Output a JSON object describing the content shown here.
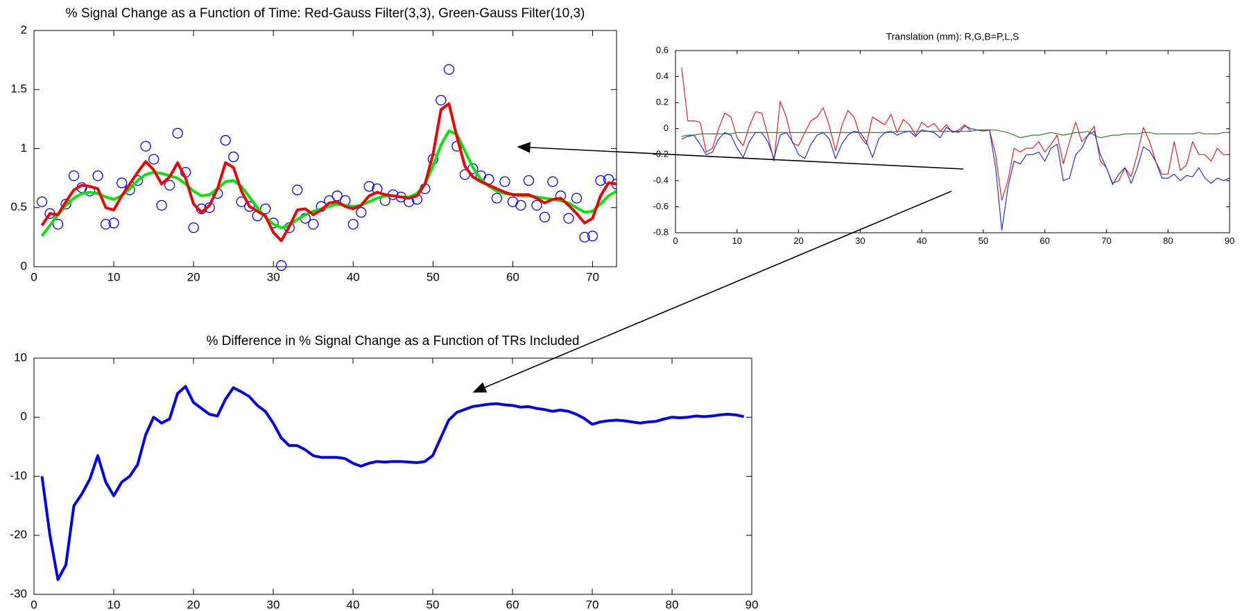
{
  "chart_data": [
    {
      "type": "line",
      "title": "% Signal Change as a Function of Time: Red-Gauss Filter(3,3), Green-Gauss Filter(10,3)",
      "x": [
        1,
        2,
        3,
        4,
        5,
        6,
        7,
        8,
        9,
        10,
        11,
        12,
        13,
        14,
        15,
        16,
        17,
        18,
        19,
        20,
        21,
        22,
        23,
        24,
        25,
        26,
        27,
        28,
        29,
        30,
        31,
        32,
        33,
        34,
        35,
        36,
        37,
        38,
        39,
        40,
        41,
        42,
        43,
        44,
        45,
        46,
        47,
        48,
        49,
        50,
        51,
        52,
        53,
        54,
        55,
        56,
        57,
        58,
        59,
        60,
        61,
        62,
        63,
        64,
        65,
        66,
        67,
        68,
        69,
        70,
        71,
        72,
        73
      ],
      "xlim": [
        0,
        73
      ],
      "xticks": [
        0,
        10,
        20,
        30,
        40,
        50,
        60,
        70
      ],
      "ylim": [
        0,
        2
      ],
      "yticks": [
        0,
        0.5,
        1,
        1.5,
        2
      ],
      "series": [
        {
          "color": "#0000ff",
          "mode": "markers",
          "values": [
            0.55,
            0.45,
            0.36,
            0.53,
            0.77,
            0.67,
            0.64,
            0.77,
            0.36,
            0.37,
            0.71,
            0.65,
            0.73,
            1.02,
            0.91,
            0.52,
            0.69,
            1.13,
            0.8,
            0.33,
            0.49,
            0.5,
            0.62,
            1.07,
            0.93,
            0.55,
            0.51,
            0.43,
            0.49,
            0.37,
            0.01,
            0.33,
            0.65,
            0.41,
            0.36,
            0.51,
            0.56,
            0.6,
            0.56,
            0.36,
            0.46,
            0.68,
            0.66,
            0.56,
            0.61,
            0.59,
            0.55,
            0.57,
            0.66,
            0.91,
            1.41,
            1.67,
            1.02,
            0.78,
            0.83,
            0.77,
            0.74,
            0.58,
            0.72,
            0.55,
            0.52,
            0.73,
            0.52,
            0.42,
            0.72,
            0.6,
            0.41,
            0.58,
            0.25,
            0.26,
            0.73,
            0.74,
            0.7
          ]
        },
        {
          "color": "#00e600",
          "mode": "lines",
          "values": [
            0.26,
            0.35,
            0.44,
            0.52,
            0.58,
            0.62,
            0.63,
            0.62,
            0.59,
            0.57,
            0.6,
            0.66,
            0.73,
            0.78,
            0.8,
            0.79,
            0.77,
            0.75,
            0.7,
            0.64,
            0.6,
            0.61,
            0.66,
            0.72,
            0.73,
            0.68,
            0.59,
            0.5,
            0.42,
            0.36,
            0.33,
            0.35,
            0.4,
            0.44,
            0.47,
            0.49,
            0.51,
            0.53,
            0.52,
            0.51,
            0.52,
            0.55,
            0.58,
            0.6,
            0.6,
            0.59,
            0.59,
            0.62,
            0.7,
            0.85,
            1.03,
            1.15,
            1.12,
            0.98,
            0.84,
            0.74,
            0.68,
            0.64,
            0.62,
            0.61,
            0.6,
            0.6,
            0.59,
            0.58,
            0.57,
            0.56,
            0.54,
            0.5,
            0.46,
            0.47,
            0.53,
            0.6,
            0.64
          ]
        },
        {
          "color": "#ee0000",
          "mode": "lines",
          "values": [
            0.35,
            0.45,
            0.44,
            0.55,
            0.65,
            0.69,
            0.68,
            0.66,
            0.5,
            0.48,
            0.6,
            0.7,
            0.8,
            0.89,
            0.82,
            0.7,
            0.76,
            0.88,
            0.75,
            0.53,
            0.46,
            0.52,
            0.66,
            0.88,
            0.84,
            0.64,
            0.51,
            0.47,
            0.43,
            0.29,
            0.22,
            0.34,
            0.48,
            0.49,
            0.44,
            0.48,
            0.54,
            0.55,
            0.51,
            0.49,
            0.52,
            0.6,
            0.63,
            0.61,
            0.6,
            0.59,
            0.58,
            0.6,
            0.7,
            0.95,
            1.33,
            1.38,
            1.1,
            0.85,
            0.76,
            0.72,
            0.69,
            0.66,
            0.63,
            0.61,
            0.61,
            0.61,
            0.58,
            0.54,
            0.57,
            0.58,
            0.52,
            0.45,
            0.37,
            0.41,
            0.6,
            0.71,
            0.7
          ]
        }
      ]
    },
    {
      "type": "line",
      "title": "Translation (mm): R,G,B=P,L,S",
      "x": [
        1,
        2,
        3,
        4,
        5,
        6,
        7,
        8,
        9,
        10,
        11,
        12,
        13,
        14,
        15,
        16,
        17,
        18,
        19,
        20,
        21,
        22,
        23,
        24,
        25,
        26,
        27,
        28,
        29,
        30,
        31,
        32,
        33,
        34,
        35,
        36,
        37,
        38,
        39,
        40,
        41,
        42,
        43,
        44,
        45,
        46,
        47,
        48,
        49,
        50,
        51,
        52,
        53,
        54,
        55,
        56,
        57,
        58,
        59,
        60,
        61,
        62,
        63,
        64,
        65,
        66,
        67,
        68,
        69,
        70,
        71,
        72,
        73,
        74,
        75,
        76,
        77,
        78,
        79,
        80,
        81,
        82,
        83,
        84,
        85,
        86,
        87,
        88,
        89,
        90
      ],
      "xlim": [
        0,
        90
      ],
      "xticks": [
        0,
        10,
        20,
        30,
        40,
        50,
        60,
        70,
        80,
        90
      ],
      "ylim": [
        -0.8,
        0.6
      ],
      "yticks": [
        -0.8,
        -0.6,
        -0.4,
        -0.2,
        0,
        0.2,
        0.4,
        0.6
      ],
      "series": [
        {
          "color": "#dd2222",
          "mode": "lines",
          "values": [
            0.47,
            0.06,
            0.06,
            0.05,
            -0.18,
            -0.15,
            0,
            0.12,
            0.09,
            -0.07,
            -0.13,
            0.02,
            0.13,
            0.12,
            -0.05,
            -0.25,
            0.21,
            0.09,
            -0.11,
            -0.13,
            -0.03,
            0.06,
            0.09,
            0.16,
            0.02,
            -0.17,
            0.02,
            0.14,
            0.09,
            -0.06,
            -0.12,
            0.09,
            0.06,
            0.03,
            0.11,
            -0.03,
            0.07,
            0.03,
            -0.05,
            0.05,
            0.01,
            0.04,
            -0.02,
            0.03,
            -0.03,
            -0.01,
            0.03,
            -0.02,
            -0.01,
            -0.02,
            -0.01,
            -0.2,
            -0.55,
            -0.4,
            -0.15,
            -0.18,
            -0.15,
            -0.15,
            -0.1,
            -0.18,
            -0.12,
            -0.05,
            -0.27,
            -0.1,
            0.05,
            -0.1,
            -0.05,
            0.02,
            -0.25,
            -0.3,
            -0.42,
            -0.4,
            -0.3,
            -0.37,
            -0.2,
            0.01,
            -0.1,
            -0.25,
            -0.35,
            -0.35,
            -0.1,
            -0.32,
            -0.28,
            -0.1,
            -0.2,
            -0.2,
            -0.25,
            -0.15,
            -0.2,
            -0.2
          ]
        },
        {
          "color": "#2a8a2a",
          "mode": "lines",
          "values": [
            -0.06,
            -0.05,
            -0.05,
            -0.04,
            -0.04,
            -0.04,
            -0.04,
            -0.04,
            -0.04,
            -0.03,
            -0.03,
            -0.03,
            -0.03,
            -0.03,
            -0.03,
            -0.03,
            -0.03,
            -0.03,
            -0.03,
            -0.03,
            -0.03,
            -0.03,
            -0.03,
            -0.03,
            -0.03,
            -0.03,
            -0.03,
            -0.03,
            -0.03,
            -0.03,
            -0.03,
            -0.03,
            -0.03,
            -0.03,
            -0.03,
            -0.02,
            -0.02,
            -0.02,
            -0.02,
            -0.02,
            -0.02,
            -0.02,
            -0.02,
            -0.02,
            -0.02,
            -0.02,
            -0.02,
            -0.02,
            -0.01,
            -0.01,
            -0.01,
            -0.01,
            -0.02,
            -0.03,
            -0.05,
            -0.07,
            -0.06,
            -0.05,
            -0.05,
            -0.04,
            -0.03,
            -0.04,
            -0.05,
            -0.04,
            -0.03,
            -0.03,
            -0.02,
            -0.05,
            -0.07,
            -0.06,
            -0.05,
            -0.05,
            -0.04,
            -0.04,
            -0.04,
            -0.03,
            -0.03,
            -0.04,
            -0.04,
            -0.04,
            -0.04,
            -0.04,
            -0.04,
            -0.04,
            -0.03,
            -0.04,
            -0.04,
            -0.04,
            -0.03,
            -0.03
          ]
        },
        {
          "color": "#2233cc",
          "mode": "lines",
          "values": [
            -0.08,
            -0.06,
            -0.05,
            -0.12,
            -0.2,
            -0.18,
            -0.08,
            -0.03,
            -0.05,
            -0.15,
            -0.22,
            -0.1,
            -0.03,
            -0.03,
            -0.1,
            -0.23,
            -0.05,
            -0.03,
            -0.1,
            -0.2,
            -0.23,
            -0.12,
            -0.05,
            -0.03,
            -0.08,
            -0.23,
            -0.12,
            -0.05,
            -0.02,
            -0.03,
            -0.1,
            -0.22,
            -0.08,
            -0.03,
            -0.02,
            -0.05,
            -0.03,
            -0.02,
            -0.06,
            -0.01,
            -0.02,
            -0.03,
            -0.07,
            0.01,
            -0.02,
            -0.03,
            0.02,
            0,
            -0.01,
            -0.01,
            -0.01,
            -0.3,
            -0.78,
            -0.45,
            -0.25,
            -0.27,
            -0.2,
            -0.2,
            -0.18,
            -0.25,
            -0.15,
            -0.12,
            -0.4,
            -0.38,
            -0.2,
            -0.15,
            -0.05,
            -0.02,
            -0.2,
            -0.3,
            -0.43,
            -0.35,
            -0.3,
            -0.42,
            -0.3,
            -0.14,
            -0.17,
            -0.25,
            -0.38,
            -0.38,
            -0.35,
            -0.4,
            -0.36,
            -0.37,
            -0.3,
            -0.38,
            -0.42,
            -0.38,
            -0.4,
            -0.38
          ]
        }
      ]
    },
    {
      "type": "line",
      "title": "% Difference in % Signal Change as a Function of TRs Included",
      "x": [
        1,
        2,
        3,
        4,
        5,
        6,
        7,
        8,
        9,
        10,
        11,
        12,
        13,
        14,
        15,
        16,
        17,
        18,
        19,
        20,
        21,
        22,
        23,
        24,
        25,
        26,
        27,
        28,
        29,
        30,
        31,
        32,
        33,
        34,
        35,
        36,
        37,
        38,
        39,
        40,
        41,
        42,
        43,
        44,
        45,
        46,
        47,
        48,
        49,
        50,
        51,
        52,
        53,
        54,
        55,
        56,
        57,
        58,
        59,
        60,
        61,
        62,
        63,
        64,
        65,
        66,
        67,
        68,
        69,
        70,
        71,
        72,
        73,
        74,
        75,
        76,
        77,
        78,
        79,
        80,
        81,
        82,
        83,
        84,
        85,
        86,
        87,
        88,
        89
      ],
      "xlim": [
        0,
        90
      ],
      "xticks": [
        0,
        10,
        20,
        30,
        40,
        50,
        60,
        70,
        80,
        90
      ],
      "ylim": [
        -30,
        10
      ],
      "yticks": [
        -30,
        -20,
        -10,
        0,
        10
      ],
      "series": [
        {
          "color": "#0000ee",
          "mode": "lines",
          "values": [
            -10,
            -20,
            -27.5,
            -25,
            -15,
            -13,
            -10.5,
            -6.5,
            -11,
            -13.3,
            -11,
            -10,
            -8,
            -3,
            0,
            -1,
            -0.3,
            4,
            5.2,
            2.5,
            1.5,
            0.5,
            0.2,
            3,
            5,
            4.3,
            3.5,
            2,
            1,
            -1,
            -3.5,
            -4.8,
            -4.8,
            -5.5,
            -6.5,
            -6.8,
            -6.8,
            -6.8,
            -7,
            -7.8,
            -8.3,
            -7.8,
            -7.5,
            -7.6,
            -7.5,
            -7.5,
            -7.6,
            -7.7,
            -7.5,
            -6.5,
            -3.5,
            -0.5,
            0.8,
            1.3,
            1.8,
            2,
            2.2,
            2.3,
            2.1,
            2,
            1.7,
            1.8,
            1.5,
            1.3,
            1,
            1.2,
            1,
            0.5,
            -0.2,
            -1.2,
            -0.8,
            -0.6,
            -0.5,
            -0.6,
            -0.8,
            -1,
            -0.8,
            -0.7,
            -0.3,
            0,
            -0.1,
            0,
            0.2,
            0.1,
            0.2,
            0.4,
            0.5,
            0.4,
            0.1
          ]
        }
      ]
    }
  ]
}
